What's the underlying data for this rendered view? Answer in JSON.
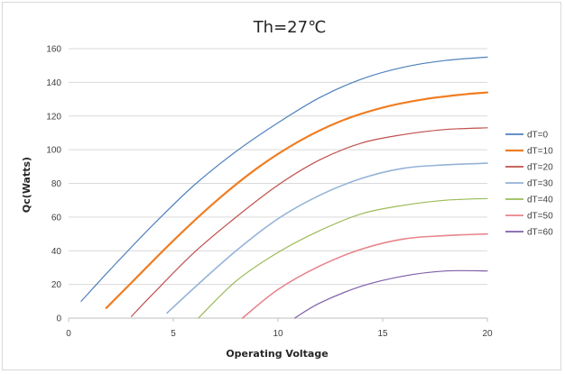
{
  "chart_data": {
    "type": "line",
    "title": "Th=27℃",
    "xlabel": "Operating Voltage",
    "ylabel": "Qc(Watts)",
    "xlim": [
      0,
      20
    ],
    "ylim": [
      0,
      160
    ],
    "xticks": [
      0,
      5,
      10,
      15,
      20
    ],
    "yticks": [
      0,
      20,
      40,
      60,
      80,
      100,
      120,
      140,
      160
    ],
    "grid": "horizontal",
    "legend_position": "right",
    "series": [
      {
        "name": "dT=0",
        "color": "#4f81bd",
        "width": 1.2,
        "x": [
          0.6,
          2,
          4,
          6,
          8,
          10,
          12,
          14,
          16,
          18,
          20
        ],
        "y": [
          10,
          29,
          55,
          79,
          99,
          116,
          131,
          142,
          149,
          153,
          155
        ]
      },
      {
        "name": "dT=10",
        "color": "#f07d22",
        "width": 2.2,
        "x": [
          1.8,
          3,
          5,
          7,
          9,
          11,
          13,
          15,
          17,
          19,
          20
        ],
        "y": [
          6,
          21,
          46,
          69,
          89,
          105,
          117,
          125,
          130,
          133,
          134
        ]
      },
      {
        "name": "dT=20",
        "color": "#c0504d",
        "width": 1.2,
        "x": [
          3.0,
          4,
          6,
          8,
          10,
          12,
          14,
          16,
          18,
          20
        ],
        "y": [
          1,
          14,
          39,
          60,
          79,
          94,
          104,
          109,
          112,
          113
        ]
      },
      {
        "name": "dT=30",
        "color": "#95b3d7",
        "width": 1.6,
        "x": [
          4.7,
          6,
          8,
          10,
          12,
          14,
          16,
          18,
          20
        ],
        "y": [
          3,
          18,
          40,
          59,
          73,
          83,
          89,
          91,
          92
        ]
      },
      {
        "name": "dT=40",
        "color": "#9bbb59",
        "width": 1.2,
        "x": [
          6.2,
          8,
          10,
          12,
          14,
          16,
          18,
          20
        ],
        "y": [
          0,
          22,
          39,
          52,
          62,
          67,
          70,
          71
        ]
      },
      {
        "name": "dT=50",
        "color": "#e6858b",
        "width": 1.6,
        "x": [
          8.3,
          10,
          12,
          14,
          16,
          18,
          20
        ],
        "y": [
          0,
          17,
          31,
          41,
          47,
          49,
          50
        ]
      },
      {
        "name": "dT=60",
        "color": "#7f5fa8",
        "width": 1.2,
        "x": [
          10.8,
          12,
          14,
          16,
          18,
          20
        ],
        "y": [
          0,
          9,
          19,
          25,
          28,
          28
        ]
      }
    ]
  }
}
